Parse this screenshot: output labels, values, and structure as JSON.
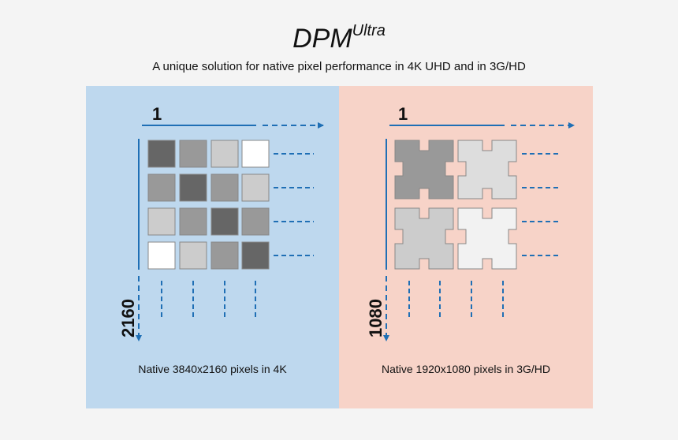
{
  "header": {
    "title_main": "DPM",
    "title_super": "Ultra",
    "subtitle": "A unique solution for native pixel performance in 4K UHD and in 3G/HD"
  },
  "left_panel": {
    "axis_x_label": "1",
    "axis_y_label": "2160",
    "caption": "Native 3840x2160 pixels in 4K",
    "background": "#bed8ee",
    "pixel_gray_levels": [
      [
        "#666666",
        "#999999",
        "#cccccc",
        "#ffffff"
      ],
      [
        "#999999",
        "#666666",
        "#999999",
        "#cccccc"
      ],
      [
        "#cccccc",
        "#999999",
        "#666666",
        "#999999"
      ],
      [
        "#ffffff",
        "#cccccc",
        "#999999",
        "#666666"
      ]
    ]
  },
  "right_panel": {
    "axis_x_label": "1",
    "axis_y_label": "1080",
    "caption": "Native 1920x1080 pixels in 3G/HD",
    "background": "#f7d3c8",
    "pixel_gray_levels": [
      [
        "#999999",
        "#dddddd"
      ],
      [
        "#cccccc",
        "#f2f2f2"
      ]
    ]
  },
  "colors": {
    "arrow": "#1f6fb5",
    "text": "#111111",
    "pixel_border": "#888888"
  }
}
